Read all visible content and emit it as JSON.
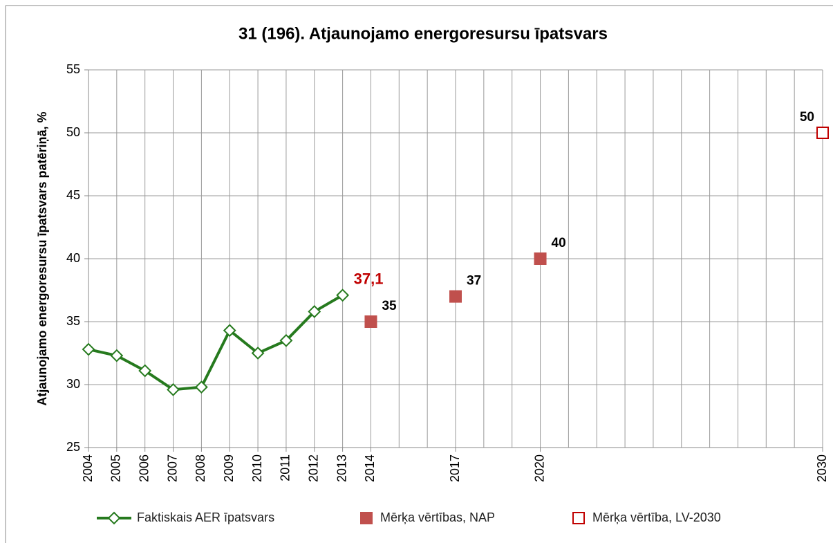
{
  "chart_data": {
    "type": "line",
    "title": "31 (196). Atjaunojamo energoresursu īpatsvars",
    "ylabel": "Atjaunojamo energoresursu īpatsvars patēriņā, %",
    "xlim": [
      2004,
      2030
    ],
    "xticks": [
      2004,
      2005,
      2006,
      2007,
      2008,
      2009,
      2010,
      2011,
      2012,
      2013,
      2014,
      2017,
      2020,
      2030
    ],
    "xgrid_step": 1,
    "ylim": [
      25,
      55
    ],
    "yticks": [
      25,
      30,
      35,
      40,
      45,
      50,
      55
    ],
    "grid": true,
    "legend": "bottom",
    "series": [
      {
        "name": "Faktiskais AER īpatsvars",
        "color": "#267a1e",
        "marker": "diamond",
        "line": true,
        "x": [
          2004,
          2005,
          2006,
          2007,
          2008,
          2009,
          2010,
          2011,
          2012,
          2013
        ],
        "values": [
          32.8,
          32.3,
          31.1,
          29.6,
          29.8,
          34.3,
          32.5,
          33.5,
          35.8,
          37.1
        ],
        "value_labels": [
          null,
          null,
          null,
          null,
          null,
          null,
          null,
          null,
          null,
          "37,1"
        ],
        "label_color": "#c00000",
        "label_position": "upper right"
      },
      {
        "name": "Mērķa vērtības, NAP",
        "color": "#c0504d",
        "marker": "square",
        "line": false,
        "x": [
          2014,
          2017,
          2020
        ],
        "values": [
          35,
          37,
          40
        ],
        "data_labels": true,
        "label_color": "#000000",
        "label_position": "upper right"
      },
      {
        "name": "Mērķa vērtība, LV-2030",
        "color": "#c00000",
        "marker": "hollow-square",
        "line": false,
        "x": [
          2030
        ],
        "values": [
          50
        ],
        "data_labels": true,
        "label_color": "#000000",
        "label_position": "upper left"
      }
    ]
  }
}
